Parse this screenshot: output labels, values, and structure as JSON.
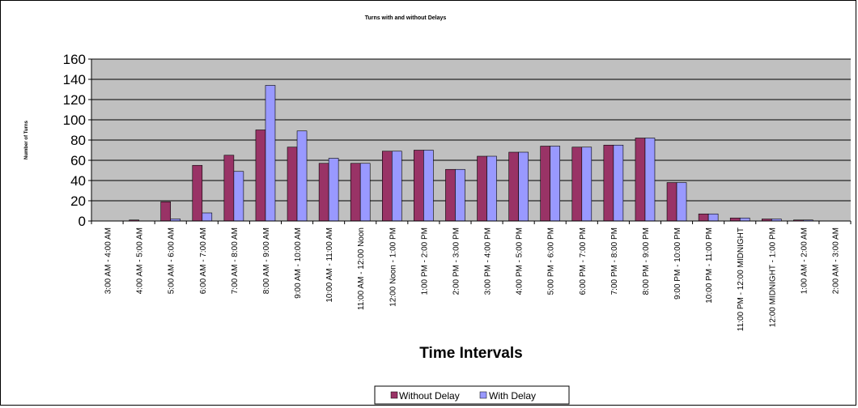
{
  "chart_data": {
    "type": "bar",
    "title": "Turns with and without  Delays",
    "xlabel": "Time Intervals",
    "ylabel": "Number of Turns",
    "ylim": [
      0,
      160
    ],
    "yticks": [
      0,
      20,
      40,
      60,
      80,
      100,
      120,
      140,
      160
    ],
    "grid": true,
    "legend_position": "bottom",
    "categories": [
      "3:00 AM - 4:00 AM",
      "4:00 AM - 5:00 AM",
      "5:00 AM - 6:00 AM",
      "6:00 AM - 7:00 AM",
      "7:00 AM - 8:00 AM",
      "8:00 AM - 9:00 AM",
      "9:00 AM - 10:00  AM",
      "10:00 AM - 11:00 AM",
      "11:00 AM - 12:00 Noon",
      "12:00 Noon - 1:00 PM",
      "1:00 PM - 2:00 PM",
      "2:00 PM - 3:00 PM",
      "3:00 PM - 4:00 PM",
      "4:00 PM - 5:00 PM",
      "5:00 PM - 6:00 PM",
      "6:00 PM - 7:00 PM",
      "7:00 PM - 8:00 PM",
      "8:00 PM - 9:00 PM",
      "9:00 PM - 10:00 PM",
      "10:00 PM - 11:00 PM",
      "11:00 PM - 12:00  MIDNIGHT",
      "12:00 MIDNIGHT - 1:00 PM",
      "1:00 AM - 2:00 AM",
      "2:00 AM - 3:00 AM"
    ],
    "series": [
      {
        "name": "Without Delay",
        "color": "#993366",
        "values": [
          0,
          1,
          19,
          55,
          65,
          90,
          73,
          57,
          57,
          69,
          70,
          51,
          64,
          68,
          74,
          73,
          75,
          82,
          38,
          7,
          3,
          2,
          1,
          0
        ]
      },
      {
        "name": "With Delay",
        "color": "#9999FF",
        "values": [
          0,
          0,
          2,
          8,
          49,
          134,
          89,
          62,
          57,
          69,
          70,
          51,
          64,
          68,
          74,
          73,
          75,
          82,
          38,
          7,
          3,
          2,
          1,
          0
        ]
      }
    ],
    "colors": {
      "plot_background": "#C0C0C0",
      "gridline": "#000000"
    }
  }
}
